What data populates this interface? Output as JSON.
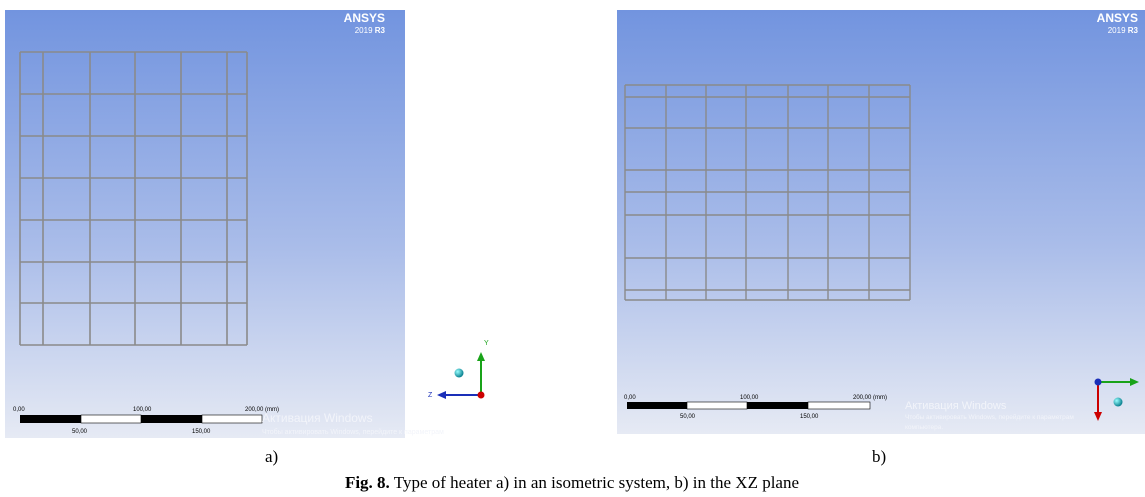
{
  "panels": [
    {
      "logo": {
        "brand": "ANSYS",
        "version": "2019",
        "release": "R3"
      },
      "scale": {
        "ticks_top": [
          "0,00",
          "100,00",
          "200,00 (mm)"
        ],
        "ticks_bottom": [
          "50,00",
          "150,00"
        ]
      },
      "axes": {
        "vertical": "Y",
        "horizontal": "Z"
      },
      "watermark": {
        "title": "Активация Windows",
        "lines": [
          "Чтобы активировать Windows, перейдите к параметрам"
        ]
      },
      "label": "a)"
    },
    {
      "logo": {
        "brand": "ANSYS",
        "version": "2019",
        "release": "R3"
      },
      "scale": {
        "ticks_top": [
          "0,00",
          "100,00",
          "200,00 (mm)"
        ],
        "ticks_bottom": [
          "50,00",
          "150,00"
        ]
      },
      "watermark": {
        "title": "Активация Windows",
        "lines": [
          "Чтобы активировать Windows, перейдите к параметрам",
          "компьютера."
        ]
      },
      "label": "b)"
    }
  ],
  "caption": {
    "number": "Fig. 8.",
    "text": "Type of heater a) in an isometric system, b) in the XZ plane"
  }
}
